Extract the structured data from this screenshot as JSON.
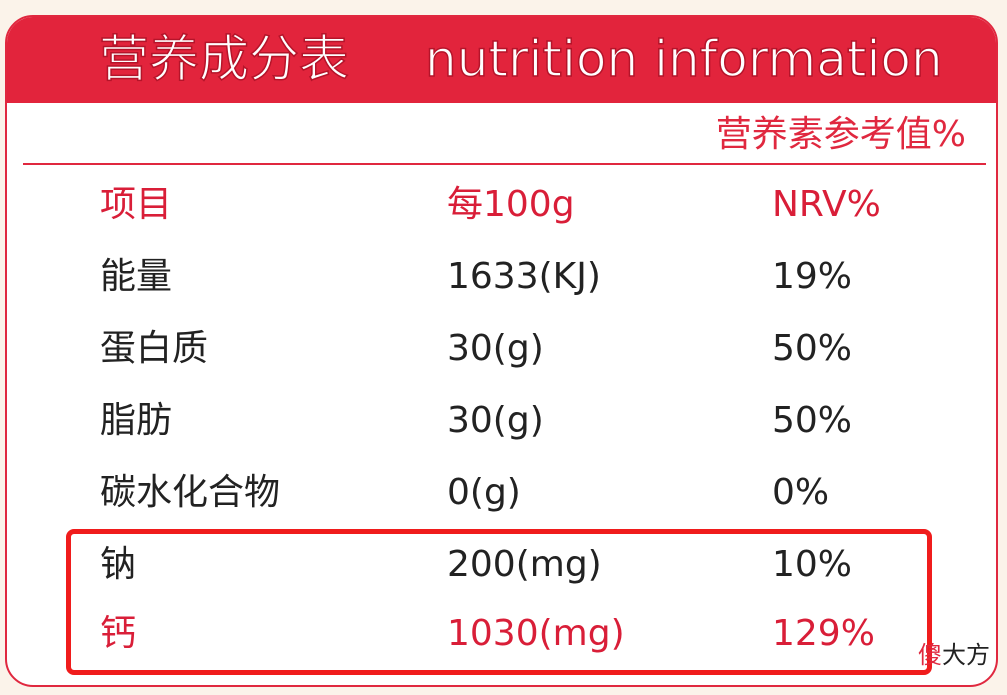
{
  "header": {
    "title_cn": "营养成分表",
    "title_en": "nutrition information"
  },
  "subheader": "营养素参考值%",
  "table": {
    "columns": [
      "项目",
      "每100g",
      "NRV%"
    ],
    "rows": [
      [
        "能量",
        "1633(KJ)",
        "19%"
      ],
      [
        "蛋白质",
        "30(g)",
        "50%"
      ],
      [
        "脂肪",
        "30(g)",
        "50%"
      ],
      [
        "碳水化合物",
        "0(g)",
        "0%"
      ],
      [
        "钠",
        "200(mg)",
        "10%"
      ],
      [
        "钙",
        "1030(mg)",
        "129%"
      ]
    ]
  },
  "watermark": [
    "傻",
    "大方"
  ]
}
